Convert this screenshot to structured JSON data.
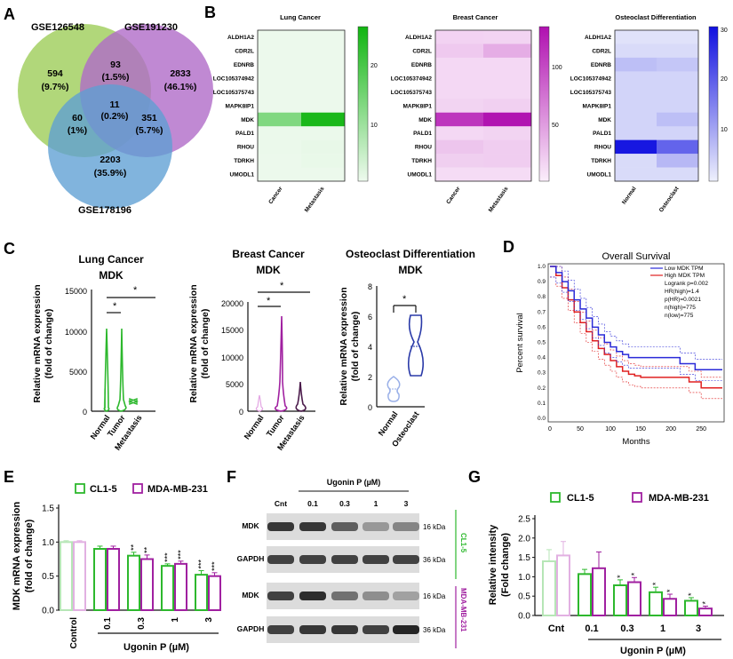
{
  "panels": {
    "A": "A",
    "B": "B",
    "C": "C",
    "D": "D",
    "E": "E",
    "F": "F",
    "G": "G"
  },
  "colors": {
    "green": "#2db82d",
    "purple": "#a020a0",
    "blue": "#2a2ad8",
    "red": "#e02020",
    "venn_green": "#a9d36b",
    "venn_purple": "#b06cc8",
    "venn_blue": "#5d9fd4"
  },
  "venn": {
    "set1": "GSE126548",
    "set2": "GSE191230",
    "set3": "GSE178196",
    "regions": [
      {
        "count": "594",
        "pct": "(9.7%)"
      },
      {
        "count": "93",
        "pct": "(1.5%)"
      },
      {
        "count": "2833",
        "pct": "(46.1%)"
      },
      {
        "count": "11",
        "pct": "(0.2%)"
      },
      {
        "count": "60",
        "pct": "(1%)"
      },
      {
        "count": "351",
        "pct": "(5.7%)"
      },
      {
        "count": "2203",
        "pct": "(35.9%)"
      }
    ]
  },
  "heatmaps": {
    "genes": [
      "ALDH1A2",
      "CDR2L",
      "EDNRB",
      "LOC105374942",
      "LOC105375743",
      "MAPK8IP1",
      "MDK",
      "PALD1",
      "RHOU",
      "TDRKH",
      "UMODL1"
    ],
    "lung": {
      "title": "Lung Cancer",
      "xlabels": [
        "Cancer",
        "Metastasis"
      ],
      "ticks": [
        "20",
        "10"
      ],
      "values": [
        [
          0.2,
          0.2
        ],
        [
          0.2,
          0.2
        ],
        [
          0.2,
          0.2
        ],
        [
          0.2,
          0.2
        ],
        [
          0.2,
          0.2
        ],
        [
          0.2,
          0.2
        ],
        [
          12,
          23
        ],
        [
          0.3,
          0.3
        ],
        [
          0.3,
          0.6
        ],
        [
          0.2,
          0.5
        ],
        [
          0.2,
          0.2
        ]
      ]
    },
    "breast": {
      "title": "Breast Cancer",
      "xlabels": [
        "Cancer",
        "Metastasis"
      ],
      "ticks": [
        "100",
        "50"
      ],
      "values": [
        [
          15,
          14
        ],
        [
          20,
          35
        ],
        [
          12,
          12
        ],
        [
          12,
          12
        ],
        [
          12,
          12
        ],
        [
          14,
          16
        ],
        [
          100,
          118
        ],
        [
          12,
          14
        ],
        [
          22,
          18
        ],
        [
          17,
          18
        ],
        [
          10,
          10
        ]
      ]
    },
    "osteo": {
      "title": "Osteoclast Differentiation",
      "xlabels": [
        "Normal",
        "Osteoclast"
      ],
      "ticks": [
        "30",
        "20",
        "10"
      ],
      "values": [
        [
          2,
          2
        ],
        [
          3,
          3
        ],
        [
          7,
          6
        ],
        [
          4,
          4
        ],
        [
          4,
          4
        ],
        [
          4,
          4
        ],
        [
          4,
          7
        ],
        [
          4,
          4
        ],
        [
          31,
          20
        ],
        [
          3,
          8
        ],
        [
          3,
          3
        ]
      ]
    }
  },
  "violins": {
    "lung": {
      "title": "Lung Cancer",
      "subtitle": "MDK",
      "ylabel1": "Relative mRNA expression",
      "ylabel2": "(fold of change)",
      "yticks": [
        "15000",
        "10000",
        "5000",
        "0"
      ],
      "cats": [
        "Normal",
        "Tumor",
        "Metastasis"
      ],
      "sig": [
        "*",
        "*"
      ]
    },
    "breast": {
      "title": "Breast Cancer",
      "subtitle": "MDK",
      "ylabel1": "Relative mRNA expression",
      "ylabel2": "(fold of change)",
      "yticks": [
        "20000",
        "15000",
        "10000",
        "5000",
        "0"
      ],
      "cats": [
        "Normal",
        "Tumor",
        "Metastasis"
      ],
      "sig": [
        "*",
        "*"
      ]
    },
    "osteo": {
      "title": "Osteoclast Differentiation",
      "subtitle": "MDK",
      "ylabel1": "Relative mRNA expression",
      "ylabel2": "(fold of change)",
      "yticks": [
        "8",
        "6",
        "4",
        "2",
        "0"
      ],
      "cats": [
        "Normal",
        "Osteoclast"
      ],
      "sig": [
        "*"
      ]
    }
  },
  "survival": {
    "title": "Overall Survival",
    "xlabel": "Months",
    "ylabel": "Percent survival",
    "yticks": [
      "1.0",
      "0.9",
      "0.8",
      "0.7",
      "0.6",
      "0.5",
      "0.4",
      "0.3",
      "0.2",
      "0.1",
      "0.0"
    ],
    "xticks": [
      "0",
      "50",
      "100",
      "150",
      "200",
      "250"
    ],
    "legend": [
      "Low MDK TPM",
      "High MDK TPM",
      "Logrank p=0.002",
      "HR(high)=1.4",
      "p(HR)=0.0021",
      "n(high)=775",
      "n(low)=775"
    ],
    "low": [
      [
        0,
        1
      ],
      [
        10,
        0.96
      ],
      [
        20,
        0.9
      ],
      [
        30,
        0.84
      ],
      [
        40,
        0.78
      ],
      [
        50,
        0.72
      ],
      [
        60,
        0.66
      ],
      [
        70,
        0.6
      ],
      [
        80,
        0.55
      ],
      [
        90,
        0.5
      ],
      [
        100,
        0.47
      ],
      [
        110,
        0.44
      ],
      [
        120,
        0.42
      ],
      [
        130,
        0.4
      ],
      [
        140,
        0.4
      ],
      [
        150,
        0.4
      ],
      [
        175,
        0.4
      ],
      [
        200,
        0.4
      ],
      [
        215,
        0.36
      ],
      [
        240,
        0.32
      ],
      [
        285,
        0.32
      ]
    ],
    "high": [
      [
        0,
        1
      ],
      [
        10,
        0.94
      ],
      [
        20,
        0.86
      ],
      [
        30,
        0.78
      ],
      [
        40,
        0.7
      ],
      [
        50,
        0.63
      ],
      [
        60,
        0.57
      ],
      [
        70,
        0.51
      ],
      [
        80,
        0.46
      ],
      [
        90,
        0.42
      ],
      [
        100,
        0.38
      ],
      [
        110,
        0.34
      ],
      [
        120,
        0.31
      ],
      [
        130,
        0.29
      ],
      [
        140,
        0.28
      ],
      [
        150,
        0.27
      ],
      [
        175,
        0.27
      ],
      [
        200,
        0.27
      ],
      [
        230,
        0.24
      ],
      [
        250,
        0.2
      ],
      [
        285,
        0.2
      ]
    ]
  },
  "barE": {
    "ylabel1": "MDK mRNA expression",
    "ylabel2": "(fold of change)",
    "legend": [
      "CL1-5",
      "MDA-MB-231"
    ],
    "yticks": [
      "1.5",
      "1.0",
      "0.5",
      "0.0"
    ],
    "cats": [
      "Control",
      "0.1",
      "0.3",
      "1",
      "3"
    ],
    "xlabel": "Ugonin P (µM)",
    "cl15": [
      1.0,
      0.9,
      0.8,
      0.65,
      0.52
    ],
    "mda": [
      1.0,
      0.9,
      0.75,
      0.68,
      0.5
    ],
    "err_cl15": [
      0.02,
      0.04,
      0.05,
      0.03,
      0.06
    ],
    "err_mda": [
      0.02,
      0.04,
      0.06,
      0.04,
      0.05
    ],
    "sig_cl15": [
      "",
      "",
      "**",
      "***",
      "***"
    ],
    "sig_mda": [
      "",
      "",
      "**",
      "***",
      "***"
    ]
  },
  "blot": {
    "title": "Ugonin P (µM)",
    "lanes": [
      "Cnt",
      "0.1",
      "0.3",
      "1",
      "3"
    ],
    "rows": [
      "MDK",
      "GAPDH",
      "MDK",
      "GAPDH"
    ],
    "kda": [
      "16 kDa",
      "36 kDa",
      "16 kDa",
      "36 kDa"
    ],
    "cell1": "CL1-5",
    "cell2": "MDA-MB-231"
  },
  "barG": {
    "ylabel1": "Relative intensity",
    "ylabel2": "(Fold change)",
    "legend": [
      "CL1-5",
      "MDA-MB-231"
    ],
    "yticks": [
      "2.5",
      "2.0",
      "1.5",
      "1.0",
      "0.5",
      "0.0"
    ],
    "cats": [
      "Cnt",
      "0.1",
      "0.3",
      "1",
      "3"
    ],
    "xlabel": "Ugonin P (µM)",
    "cl15": [
      1.4,
      1.07,
      0.78,
      0.6,
      0.38
    ],
    "mda": [
      1.55,
      1.22,
      0.86,
      0.43,
      0.18
    ],
    "err_cl15": [
      0.3,
      0.12,
      0.14,
      0.13,
      0.08
    ],
    "err_mda": [
      0.36,
      0.42,
      0.12,
      0.12,
      0.06
    ],
    "sig_cl15": [
      "",
      "",
      "*",
      "*",
      "*"
    ],
    "sig_mda": [
      "",
      "",
      "*",
      "*",
      "*"
    ]
  }
}
